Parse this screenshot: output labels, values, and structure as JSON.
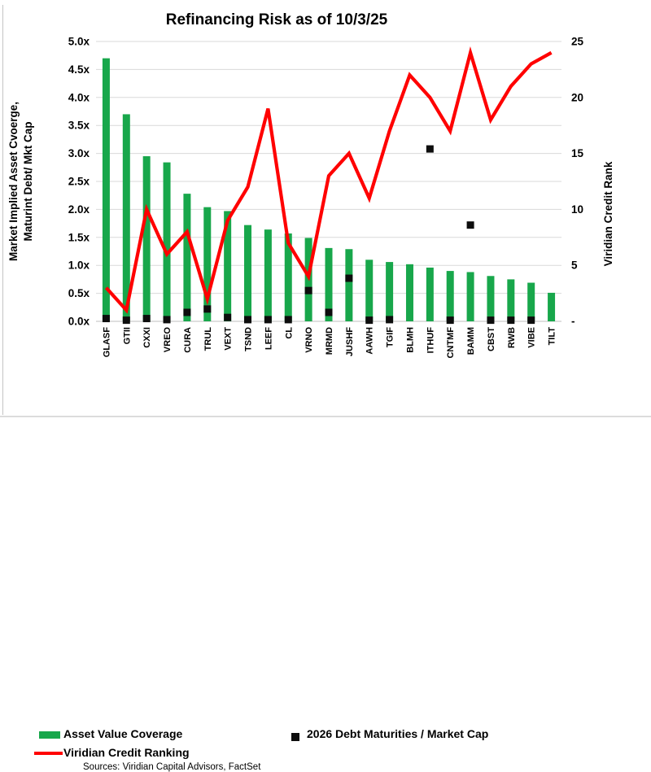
{
  "title": "Refinancing Risk as of 10/3/25",
  "source_note": "Sources: Viridian Capital Advisors, FactSet",
  "colors": {
    "bar": "#18A74B",
    "line": "#FF0000",
    "marker": "#0D0D0D",
    "grid": "#D9D9D9",
    "axis_line": "#BFBFBF"
  },
  "left_axis": {
    "title_line1": "Market Implied Asset Cvoerge,",
    "title_line2": "Maturint Debt/ Mkt Cap",
    "tick_labels": [
      "5.0x",
      "4.5x",
      "4.0x",
      "3.5x",
      "3.0x",
      "2.5x",
      "2.0x",
      "1.5x",
      "1.0x",
      "0.5x",
      "0.0x"
    ],
    "min": 0,
    "max": 5,
    "step": 0.5
  },
  "right_axis": {
    "title": "Viridian Credit Rank",
    "tick_labels": [
      "25",
      "20",
      "15",
      "10",
      "5",
      "-"
    ],
    "tick_values": [
      25,
      20,
      15,
      10,
      5,
      0
    ],
    "min": 0,
    "max": 25
  },
  "legend": {
    "bar_label": "Asset Value Coverage",
    "marker_label": "2026 Debt Maturities / Market Cap",
    "line_label": "Viridian Credit Ranking"
  },
  "chart_data": {
    "type": "combo",
    "categories": [
      "GLASF",
      "GTII",
      "CXXI",
      "VREO",
      "CURA",
      "TRUL",
      "VEXT",
      "TSND",
      "LEEF",
      "CL",
      "VRNO",
      "MRMD",
      "JUSHF",
      "AAWH",
      "TGIF",
      "BLMH",
      "ITHUF",
      "CNTMF",
      "BAMM",
      "CBST",
      "RWB",
      "VIBE",
      "TILT"
    ],
    "series": [
      {
        "name": "Asset Value Coverage",
        "type": "bar",
        "axis": "left",
        "values": [
          4.7,
          3.7,
          2.95,
          2.84,
          2.28,
          2.04,
          1.97,
          1.72,
          1.64,
          1.57,
          1.49,
          1.31,
          1.29,
          1.1,
          1.06,
          1.02,
          0.96,
          0.9,
          0.88,
          0.81,
          0.75,
          0.69,
          0.51
        ]
      },
      {
        "name": "2026 Debt Maturities / Market Cap",
        "type": "scatter",
        "axis": "left",
        "values": [
          0.05,
          0.02,
          0.05,
          0.03,
          0.16,
          0.22,
          0.07,
          0.03,
          0.03,
          0.03,
          0.55,
          0.16,
          0.77,
          0.02,
          0.03,
          null,
          3.08,
          0.02,
          1.72,
          0.02,
          0.02,
          0.02,
          null
        ]
      },
      {
        "name": "Viridian Credit Ranking",
        "type": "line",
        "axis": "right",
        "values": [
          3,
          1,
          10,
          6,
          8,
          2,
          9,
          12,
          19,
          7,
          4,
          13,
          15,
          11,
          17,
          22,
          20,
          17,
          24,
          18,
          21,
          23,
          24
        ]
      }
    ],
    "left_range": [
      0,
      5
    ],
    "right_range": [
      0,
      25
    ],
    "grid": true,
    "legend_position": "bottom"
  }
}
